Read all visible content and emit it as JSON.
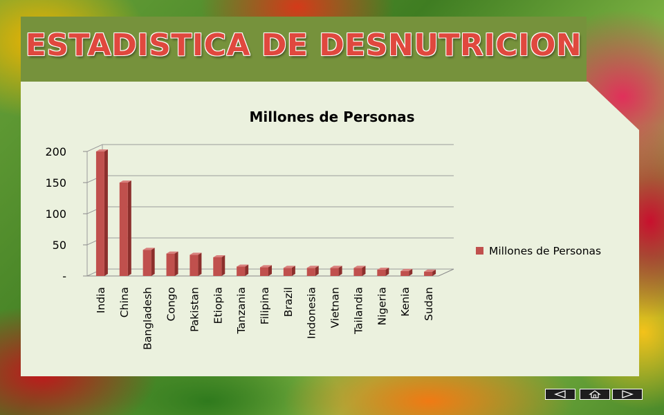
{
  "slide": {
    "title": "ESTADISTICA DE DESNUTRICION"
  },
  "colors": {
    "header_band": "#76923c",
    "panel": "#ebf1de",
    "bar": "#c0504d",
    "title": "#e0483e"
  },
  "navigation": {
    "buttons": [
      {
        "icon": "triangle-left-icon"
      },
      {
        "icon": "home-icon"
      },
      {
        "icon": "triangle-right-icon"
      }
    ]
  },
  "chart_data": {
    "type": "bar",
    "title": "Millones de Personas",
    "categories": [
      "India",
      "China",
      "Bangladesh",
      "Congo",
      "Pakistan",
      "Etiopia",
      "Tanzania",
      "Filipina",
      "Brazil",
      "Indonesia",
      "Vietnan",
      "Tailandia",
      "Nigeria",
      "Kenia",
      "Sudan"
    ],
    "series": [
      {
        "name": "Millones de Personas",
        "values": [
          200,
          150,
          42,
          36,
          34,
          30,
          15,
          14,
          13,
          13,
          13,
          13,
          10,
          8,
          7
        ]
      }
    ],
    "yticks": [
      {
        "value": 0,
        "label": "-"
      },
      {
        "value": 50,
        "label": "50"
      },
      {
        "value": 100,
        "label": "100"
      },
      {
        "value": 150,
        "label": "150"
      },
      {
        "value": 200,
        "label": "200"
      }
    ],
    "ylim": [
      0,
      200
    ],
    "xlabel": "",
    "ylabel": "",
    "grid": true,
    "legend": "right",
    "style": "3d-bar"
  }
}
